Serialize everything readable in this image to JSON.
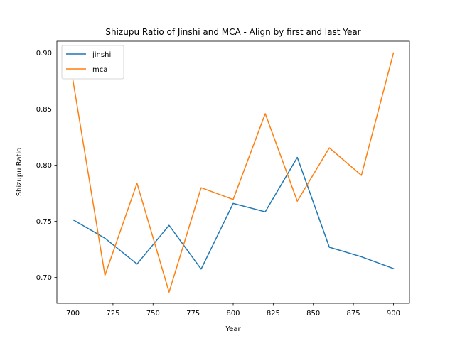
{
  "chart_data": {
    "type": "line",
    "title": "Shizupu Ratio of Jinshi and MCA - Align by first and last Year",
    "xlabel": "Year",
    "ylabel": "Shizupu Ratio",
    "x": [
      700,
      720,
      740,
      760,
      780,
      800,
      820,
      840,
      860,
      880,
      900
    ],
    "xlim": [
      690,
      910
    ],
    "ylim": [
      0.677,
      0.9105
    ],
    "xticks": [
      700,
      725,
      750,
      775,
      800,
      825,
      850,
      875,
      900
    ],
    "yticks": [
      0.7,
      0.75,
      0.8,
      0.85,
      0.9
    ],
    "ytick_labels": [
      "0.70",
      "0.75",
      "0.80",
      "0.85",
      "0.90"
    ],
    "legend_position": "upper-left",
    "series": [
      {
        "name": "jinshi",
        "color": "#1f77b4",
        "values": [
          0.7515,
          0.735,
          0.712,
          0.7465,
          0.7075,
          0.766,
          0.7585,
          0.807,
          0.727,
          0.7185,
          0.708
        ]
      },
      {
        "name": "mca",
        "color": "#ff7f0e",
        "values": [
          0.876,
          0.702,
          0.784,
          0.687,
          0.78,
          0.7695,
          0.846,
          0.768,
          0.8155,
          0.791,
          0.9
        ]
      }
    ]
  }
}
